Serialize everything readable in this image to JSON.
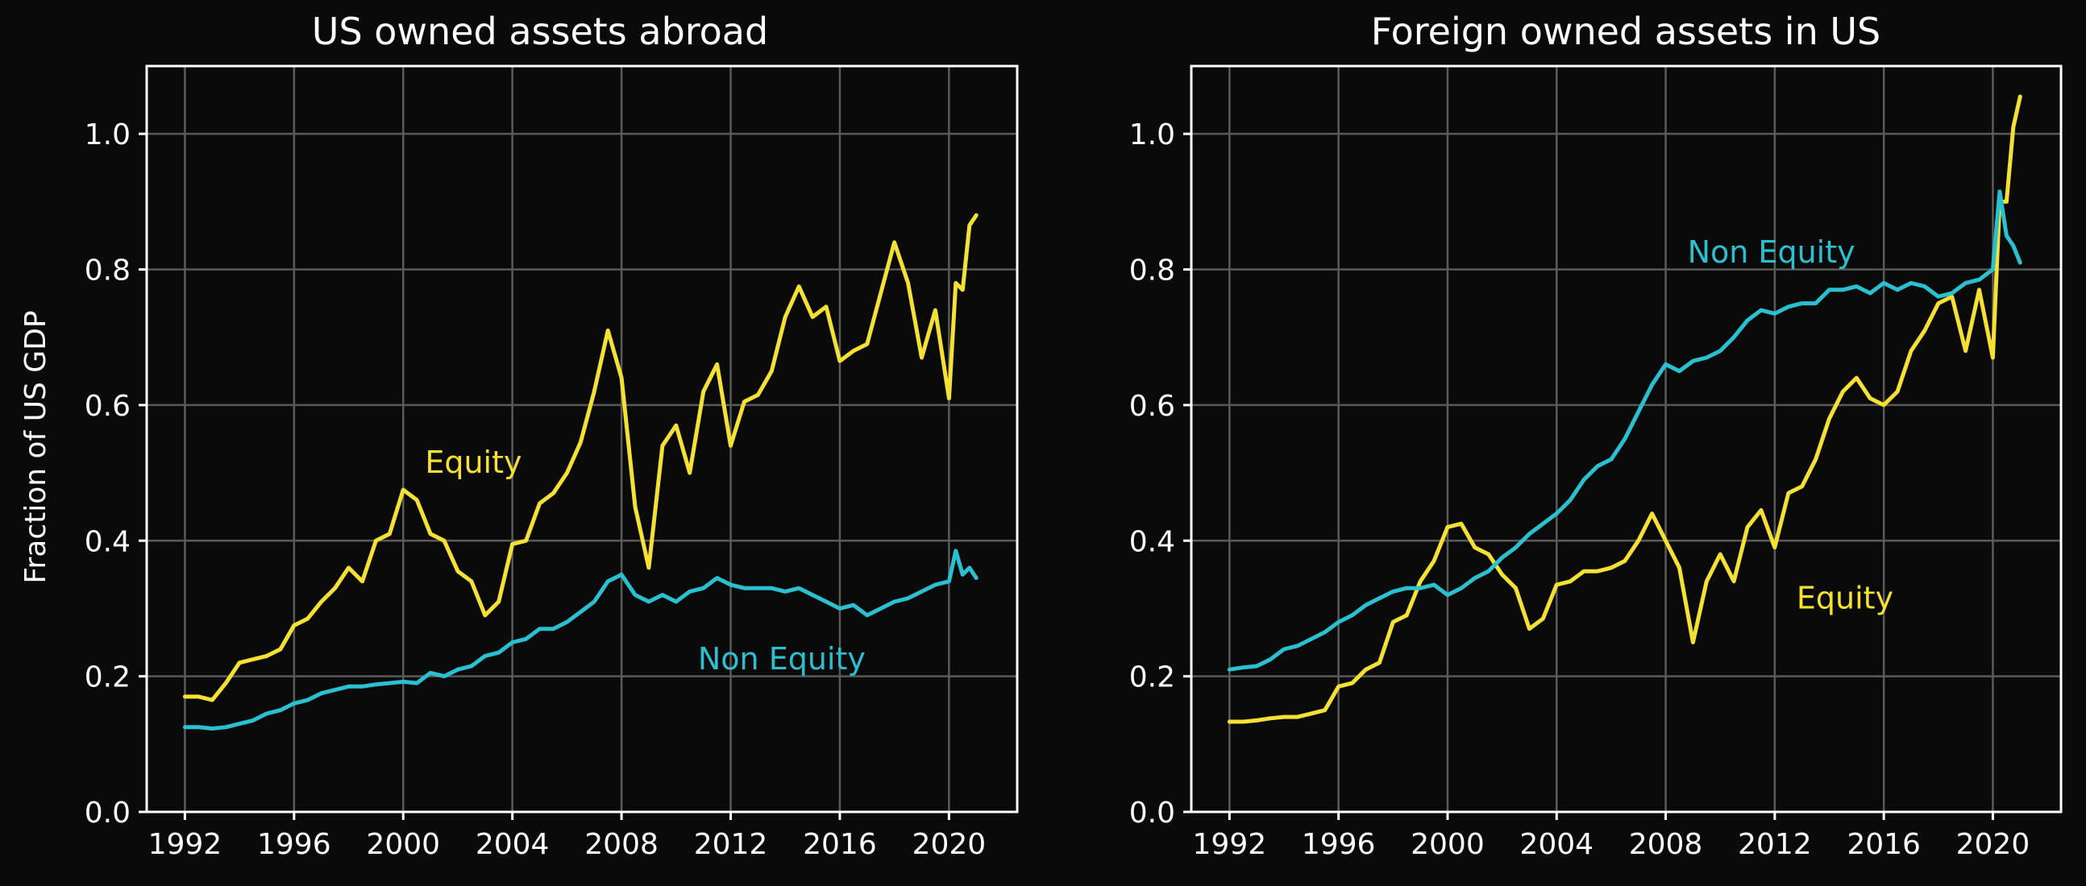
{
  "ylabel": "Fraction of US GDP",
  "colors": {
    "equity": "#f5e034",
    "non_equity": "#2bc0d0",
    "background": "#0a0a0a",
    "grid": "#5a5a5a",
    "text": "#ffffff"
  },
  "chart_data": [
    {
      "type": "line",
      "title": "US owned assets abroad",
      "ylabel": "Fraction of US GDP",
      "xlim": [
        1990.6,
        2022.5
      ],
      "ylim": [
        0.0,
        1.1
      ],
      "xticks": [
        1992,
        1996,
        2000,
        2004,
        2008,
        2012,
        2016,
        2020
      ],
      "yticks": [
        0.0,
        0.2,
        0.4,
        0.6,
        0.8,
        1.0
      ],
      "grid": true,
      "annotations": [
        {
          "text": "Equity",
          "x": 2000.8,
          "y": 0.5,
          "series": "equity"
        },
        {
          "text": "Non Equity",
          "x": 2010.8,
          "y": 0.21,
          "series": "non_equity"
        }
      ],
      "series": [
        {
          "key": "equity",
          "x": [
            1992.0,
            1992.5,
            1993.0,
            1993.5,
            1994.0,
            1994.5,
            1995.0,
            1995.5,
            1996.0,
            1996.5,
            1997.0,
            1997.5,
            1998.0,
            1998.5,
            1999.0,
            1999.5,
            2000.0,
            2000.5,
            2001.0,
            2001.5,
            2002.0,
            2002.5,
            2003.0,
            2003.5,
            2004.0,
            2004.5,
            2005.0,
            2005.5,
            2006.0,
            2006.5,
            2007.0,
            2007.5,
            2008.0,
            2008.5,
            2009.0,
            2009.5,
            2010.0,
            2010.5,
            2011.0,
            2011.5,
            2012.0,
            2012.5,
            2013.0,
            2013.5,
            2014.0,
            2014.5,
            2015.0,
            2015.5,
            2016.0,
            2016.5,
            2017.0,
            2017.5,
            2018.0,
            2018.5,
            2019.0,
            2019.5,
            2020.0,
            2020.25,
            2020.5,
            2020.75,
            2021.0
          ],
          "y": [
            0.17,
            0.17,
            0.165,
            0.19,
            0.22,
            0.225,
            0.23,
            0.24,
            0.275,
            0.285,
            0.31,
            0.33,
            0.36,
            0.34,
            0.4,
            0.41,
            0.475,
            0.46,
            0.41,
            0.4,
            0.355,
            0.34,
            0.29,
            0.31,
            0.395,
            0.4,
            0.455,
            0.47,
            0.5,
            0.545,
            0.62,
            0.71,
            0.64,
            0.45,
            0.36,
            0.54,
            0.57,
            0.5,
            0.62,
            0.66,
            0.54,
            0.605,
            0.615,
            0.65,
            0.73,
            0.775,
            0.73,
            0.745,
            0.665,
            0.68,
            0.69,
            0.765,
            0.84,
            0.78,
            0.67,
            0.74,
            0.61,
            0.78,
            0.77,
            0.865,
            0.88
          ]
        },
        {
          "key": "non_equity",
          "x": [
            1992.0,
            1992.5,
            1993.0,
            1993.5,
            1994.0,
            1994.5,
            1995.0,
            1995.5,
            1996.0,
            1996.5,
            1997.0,
            1997.5,
            1998.0,
            1998.5,
            1999.0,
            1999.5,
            2000.0,
            2000.5,
            2001.0,
            2001.5,
            2002.0,
            2002.5,
            2003.0,
            2003.5,
            2004.0,
            2004.5,
            2005.0,
            2005.5,
            2006.0,
            2006.5,
            2007.0,
            2007.5,
            2008.0,
            2008.5,
            2009.0,
            2009.5,
            2010.0,
            2010.5,
            2011.0,
            2011.5,
            2012.0,
            2012.5,
            2013.0,
            2013.5,
            2014.0,
            2014.5,
            2015.0,
            2015.5,
            2016.0,
            2016.5,
            2017.0,
            2017.5,
            2018.0,
            2018.5,
            2019.0,
            2019.5,
            2020.0,
            2020.25,
            2020.5,
            2020.75,
            2021.0
          ],
          "y": [
            0.125,
            0.125,
            0.123,
            0.125,
            0.13,
            0.135,
            0.145,
            0.15,
            0.16,
            0.165,
            0.175,
            0.18,
            0.185,
            0.185,
            0.188,
            0.19,
            0.192,
            0.19,
            0.205,
            0.2,
            0.21,
            0.215,
            0.23,
            0.235,
            0.25,
            0.255,
            0.27,
            0.27,
            0.28,
            0.295,
            0.31,
            0.34,
            0.35,
            0.32,
            0.31,
            0.32,
            0.31,
            0.325,
            0.33,
            0.345,
            0.335,
            0.33,
            0.33,
            0.33,
            0.325,
            0.33,
            0.32,
            0.31,
            0.3,
            0.305,
            0.29,
            0.3,
            0.31,
            0.315,
            0.325,
            0.335,
            0.34,
            0.385,
            0.35,
            0.36,
            0.345
          ]
        }
      ]
    },
    {
      "type": "line",
      "title": "Foreign owned assets in US",
      "ylabel": "",
      "xlim": [
        1990.6,
        2022.5
      ],
      "ylim": [
        0.0,
        1.1
      ],
      "xticks": [
        1992,
        1996,
        2000,
        2004,
        2008,
        2012,
        2016,
        2020
      ],
      "yticks": [
        0.0,
        0.2,
        0.4,
        0.6,
        0.8,
        1.0
      ],
      "grid": true,
      "annotations": [
        {
          "text": "Non Equity",
          "x": 2008.8,
          "y": 0.81,
          "series": "non_equity"
        },
        {
          "text": "Equity",
          "x": 2012.8,
          "y": 0.3,
          "series": "equity"
        }
      ],
      "series": [
        {
          "key": "equity",
          "x": [
            1992.0,
            1992.5,
            1993.0,
            1993.5,
            1994.0,
            1994.5,
            1995.0,
            1995.5,
            1996.0,
            1996.5,
            1997.0,
            1997.5,
            1998.0,
            1998.5,
            1999.0,
            1999.5,
            2000.0,
            2000.5,
            2001.0,
            2001.5,
            2002.0,
            2002.5,
            2003.0,
            2003.5,
            2004.0,
            2004.5,
            2005.0,
            2005.5,
            2006.0,
            2006.5,
            2007.0,
            2007.5,
            2008.0,
            2008.5,
            2009.0,
            2009.5,
            2010.0,
            2010.5,
            2011.0,
            2011.5,
            2012.0,
            2012.5,
            2013.0,
            2013.5,
            2014.0,
            2014.5,
            2015.0,
            2015.5,
            2016.0,
            2016.5,
            2017.0,
            2017.5,
            2018.0,
            2018.5,
            2019.0,
            2019.5,
            2020.0,
            2020.25,
            2020.5,
            2020.75,
            2021.0
          ],
          "y": [
            0.133,
            0.133,
            0.135,
            0.138,
            0.14,
            0.14,
            0.145,
            0.15,
            0.185,
            0.19,
            0.21,
            0.22,
            0.28,
            0.29,
            0.34,
            0.37,
            0.42,
            0.425,
            0.39,
            0.38,
            0.35,
            0.33,
            0.27,
            0.285,
            0.335,
            0.34,
            0.355,
            0.355,
            0.36,
            0.37,
            0.4,
            0.44,
            0.4,
            0.36,
            0.25,
            0.34,
            0.38,
            0.34,
            0.42,
            0.445,
            0.39,
            0.47,
            0.48,
            0.52,
            0.58,
            0.62,
            0.64,
            0.61,
            0.6,
            0.62,
            0.68,
            0.71,
            0.75,
            0.76,
            0.68,
            0.77,
            0.67,
            0.9,
            0.9,
            1.01,
            1.055
          ]
        },
        {
          "key": "non_equity",
          "x": [
            1992.0,
            1992.5,
            1993.0,
            1993.5,
            1994.0,
            1994.5,
            1995.0,
            1995.5,
            1996.0,
            1996.5,
            1997.0,
            1997.5,
            1998.0,
            1998.5,
            1999.0,
            1999.5,
            2000.0,
            2000.5,
            2001.0,
            2001.5,
            2002.0,
            2002.5,
            2003.0,
            2003.5,
            2004.0,
            2004.5,
            2005.0,
            2005.5,
            2006.0,
            2006.5,
            2007.0,
            2007.5,
            2008.0,
            2008.5,
            2009.0,
            2009.5,
            2010.0,
            2010.5,
            2011.0,
            2011.5,
            2012.0,
            2012.5,
            2013.0,
            2013.5,
            2014.0,
            2014.5,
            2015.0,
            2015.5,
            2016.0,
            2016.5,
            2017.0,
            2017.5,
            2018.0,
            2018.5,
            2019.0,
            2019.5,
            2020.0,
            2020.25,
            2020.5,
            2020.75,
            2021.0
          ],
          "y": [
            0.21,
            0.213,
            0.215,
            0.225,
            0.24,
            0.245,
            0.255,
            0.265,
            0.28,
            0.29,
            0.305,
            0.315,
            0.325,
            0.33,
            0.33,
            0.335,
            0.32,
            0.33,
            0.345,
            0.355,
            0.375,
            0.39,
            0.41,
            0.425,
            0.44,
            0.46,
            0.49,
            0.51,
            0.52,
            0.55,
            0.59,
            0.63,
            0.66,
            0.65,
            0.665,
            0.67,
            0.68,
            0.7,
            0.725,
            0.74,
            0.735,
            0.745,
            0.75,
            0.75,
            0.77,
            0.77,
            0.775,
            0.765,
            0.78,
            0.77,
            0.78,
            0.775,
            0.76,
            0.765,
            0.78,
            0.785,
            0.8,
            0.915,
            0.85,
            0.835,
            0.81
          ]
        }
      ]
    }
  ]
}
